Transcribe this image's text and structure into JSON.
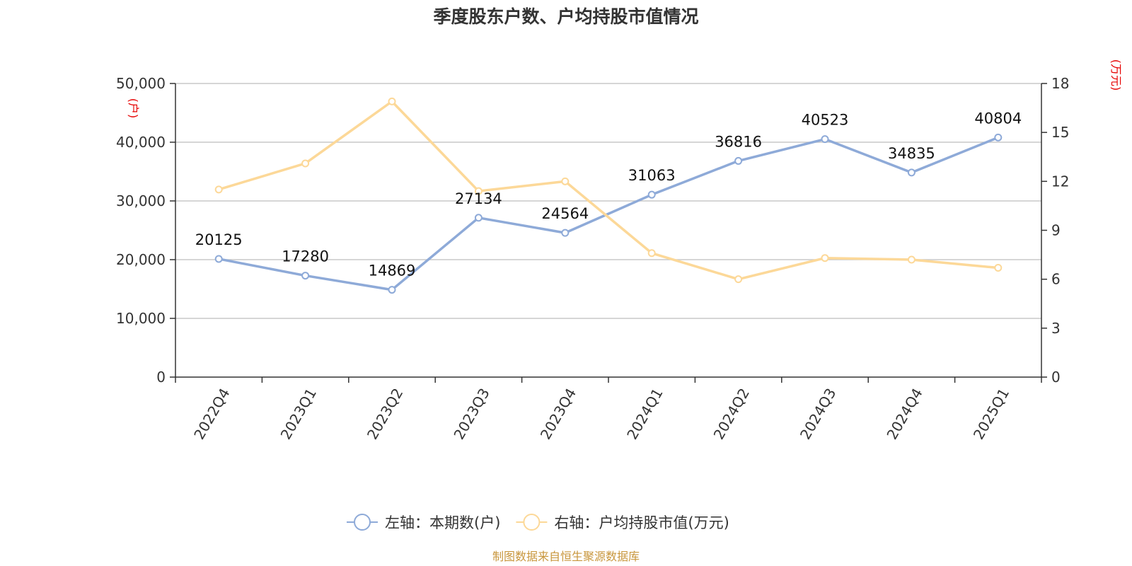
{
  "chart_data": {
    "type": "line",
    "title": "季度股东户数、户均持股市值情况",
    "categories": [
      "2022Q4",
      "2023Q1",
      "2023Q2",
      "2023Q3",
      "2023Q4",
      "2024Q1",
      "2024Q2",
      "2024Q3",
      "2024Q4",
      "2025Q1"
    ],
    "series": [
      {
        "name": "左轴：本期数(户)",
        "axis": "left",
        "color": "#8eaad8",
        "values": [
          20125,
          17280,
          14869,
          27134,
          24564,
          31063,
          36816,
          40523,
          34835,
          40804
        ],
        "data_labels": [
          "20125",
          "17280",
          "14869",
          "27134",
          "24564",
          "31063",
          "36816",
          "40523",
          "34835",
          "40804"
        ]
      },
      {
        "name": "右轴：户均持股市值(万元)",
        "axis": "right",
        "color": "#fcd898",
        "values": [
          11.5,
          13.1,
          16.9,
          11.4,
          12.0,
          7.6,
          6.0,
          7.3,
          7.2,
          6.7
        ]
      }
    ],
    "left_axis": {
      "unit": "(户)",
      "ylim": [
        0,
        50000
      ],
      "ticks": [
        "0",
        "10,000",
        "20,000",
        "30,000",
        "40,000",
        "50,000"
      ],
      "tick_values": [
        0,
        10000,
        20000,
        30000,
        40000,
        50000
      ]
    },
    "right_axis": {
      "unit": "(万元)",
      "ylim": [
        0,
        18
      ],
      "ticks": [
        "0",
        "3",
        "6",
        "9",
        "12",
        "15",
        "18"
      ],
      "tick_values": [
        0,
        3,
        6,
        9,
        12,
        15,
        18
      ]
    },
    "grid": true,
    "legend_position": "bottom-center",
    "source": "制图数据来自恒生聚源数据库"
  }
}
